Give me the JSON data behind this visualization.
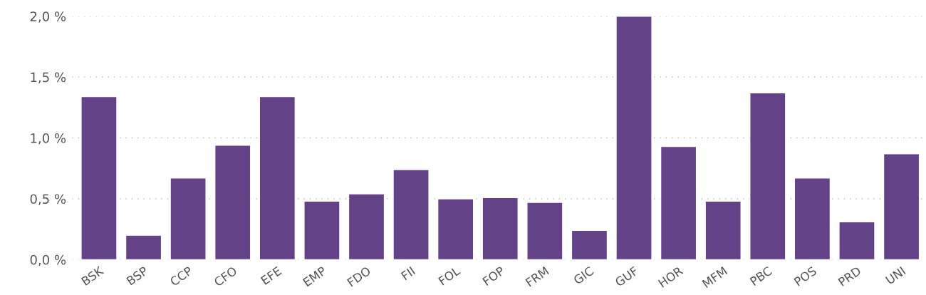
{
  "chart_data": {
    "type": "bar",
    "categories": [
      "BSK",
      "BSP",
      "CCP",
      "CFO",
      "EFE",
      "EMP",
      "FDO",
      "FII",
      "FOL",
      "FOP",
      "FRM",
      "GIC",
      "GUF",
      "HOR",
      "MFM",
      "PBC",
      "POS",
      "PRD",
      "UNI"
    ],
    "values": [
      1.34,
      0.2,
      0.67,
      0.94,
      1.34,
      0.48,
      0.54,
      0.74,
      0.5,
      0.51,
      0.47,
      0.24,
      2.0,
      0.93,
      0.48,
      1.37,
      0.67,
      0.31,
      0.87
    ],
    "color": "#634287",
    "ylim": [
      0,
      2.0
    ],
    "yticks": [
      {
        "value": 0,
        "label": "0,0 %"
      },
      {
        "value": 0.5,
        "label": "0,5 %"
      },
      {
        "value": 1.0,
        "label": "1,0 %"
      },
      {
        "value": 1.5,
        "label": "1,5 %"
      },
      {
        "value": 2.0,
        "label": "2,0 %"
      }
    ],
    "grid": "y"
  }
}
